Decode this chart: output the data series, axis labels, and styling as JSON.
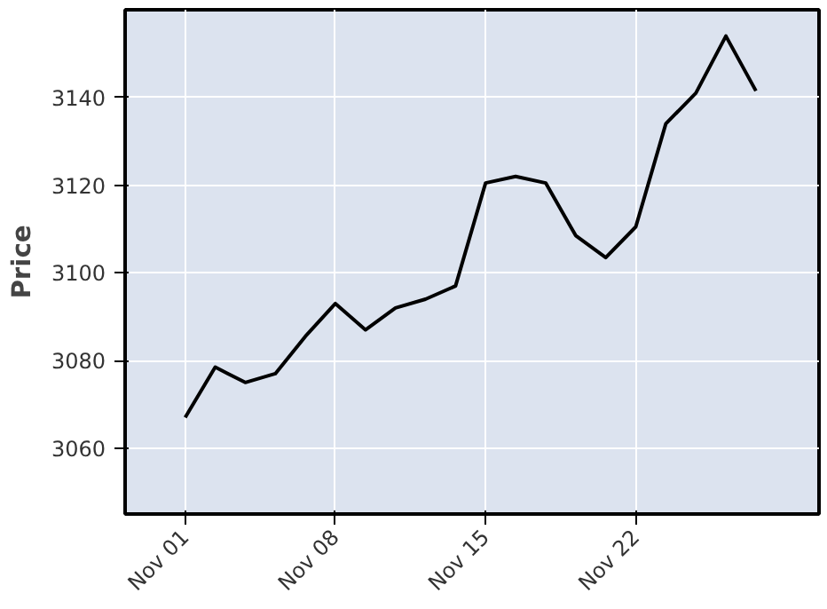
{
  "chart_data": {
    "type": "line",
    "ylabel": "Price",
    "categories": [
      "Nov 01",
      null,
      null,
      null,
      null,
      "Nov 08",
      null,
      null,
      null,
      null,
      "Nov 15",
      null,
      null,
      null,
      null,
      "Nov 22",
      null,
      null,
      null,
      null
    ],
    "series": [
      {
        "color": "#000000",
        "values": [
          3067,
          3078.5,
          3075,
          3077,
          3085.5,
          3093,
          3087,
          3092,
          3094,
          3097,
          3120.5,
          3122,
          3120.5,
          3108.5,
          3103.5,
          3110.5,
          3134,
          3141,
          3154,
          3141.5
        ]
      }
    ],
    "ylim": [
      3045,
      3160
    ],
    "yticks": [
      3060,
      3080,
      3100,
      3120,
      3140
    ],
    "grid": true
  }
}
